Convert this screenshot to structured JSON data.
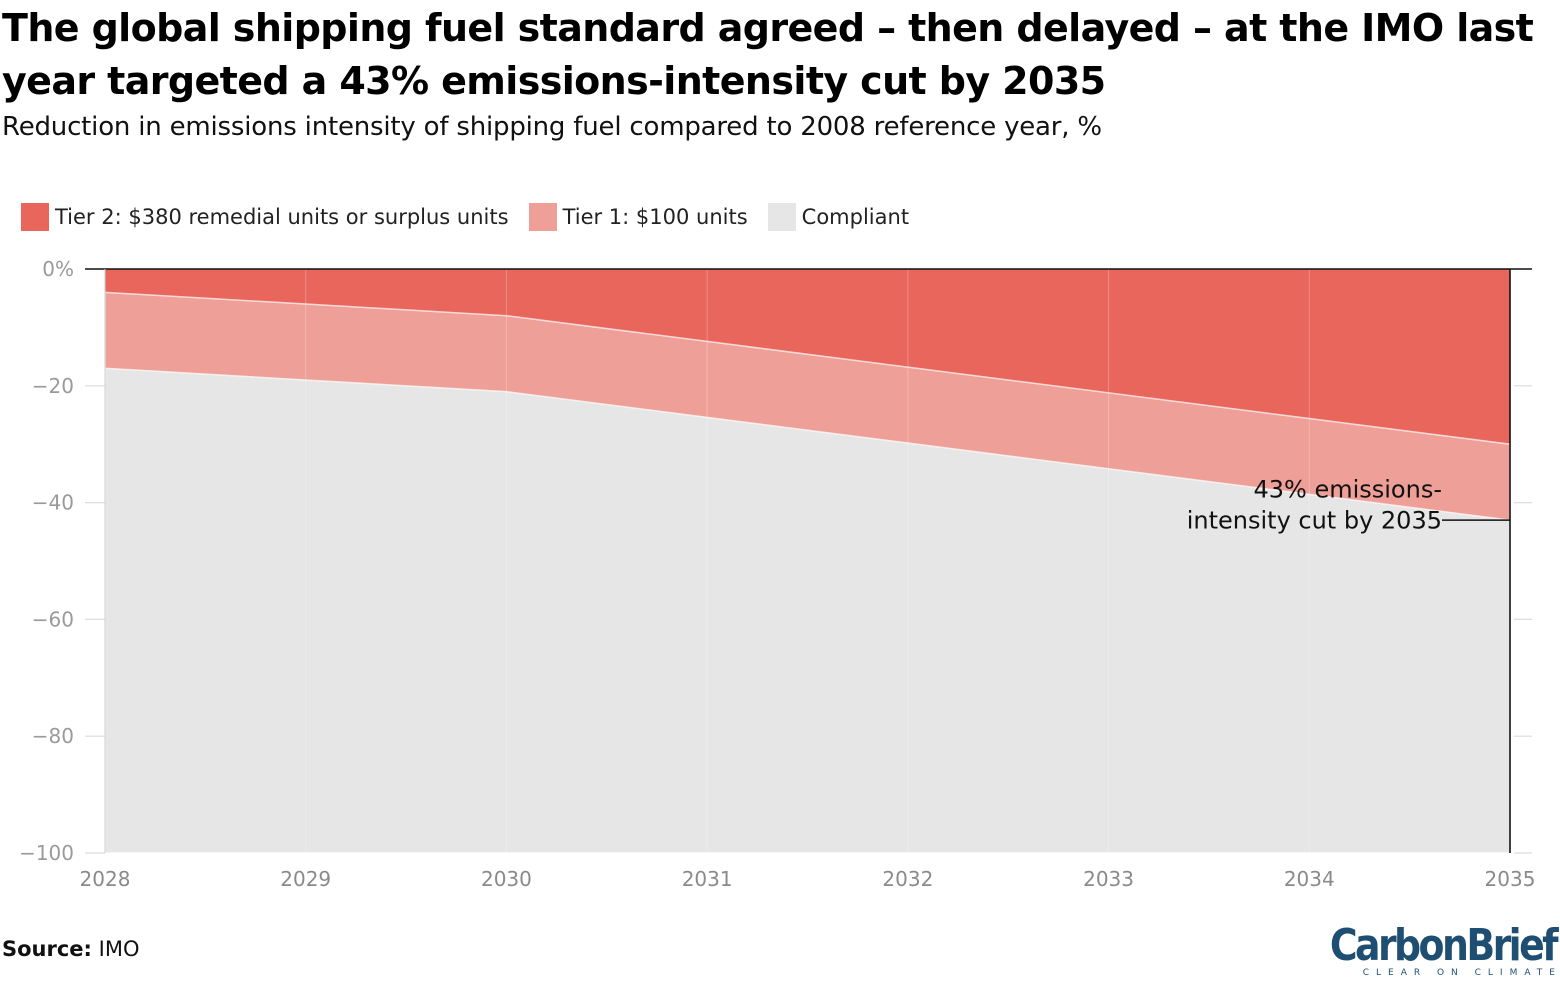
{
  "header": {
    "title": "The global shipping fuel standard agreed – then delayed – at the IMO last year targeted a 43% emissions-intensity cut by 2035",
    "subtitle": "Reduction in emissions intensity of shipping fuel compared to 2008 reference year, %"
  },
  "legend": [
    {
      "label": "Tier 2: $380 remedial units or surplus units",
      "color": "#e8665c"
    },
    {
      "label": "Tier 1: $100 units",
      "color": "#ee9f97"
    },
    {
      "label": "Compliant",
      "color": "#e6e6e6"
    }
  ],
  "chart_data": {
    "type": "area",
    "title": "The global shipping fuel standard agreed – then delayed – at the IMO last year targeted a 43% emissions-intensity cut by 2035",
    "subtitle": "Reduction in emissions intensity of shipping fuel compared to 2008 reference year, %",
    "x": [
      2028,
      2029,
      2030,
      2031,
      2032,
      2033,
      2034,
      2035
    ],
    "x_tick_labels": [
      "2028",
      "2029",
      "2030",
      "2031",
      "2032",
      "2033",
      "2034",
      "2035"
    ],
    "ylim": [
      -100,
      0
    ],
    "y_ticks": [
      0,
      -20,
      -40,
      -60,
      -80,
      -100
    ],
    "y_tick_labels": [
      "0%",
      "−20",
      "−40",
      "−60",
      "−80",
      "−100"
    ],
    "grid": true,
    "legend_position": "top-left",
    "series": [
      {
        "name": "Tier 2: $380 remedial units or surplus units",
        "color": "#e8665c",
        "values": [
          0,
          0,
          0,
          0,
          0,
          0,
          0,
          0
        ]
      },
      {
        "name": "Tier 1: $100 units",
        "color": "#ee9f97",
        "values": [
          -4,
          -6,
          -8,
          -12.4,
          -16.8,
          -21.2,
          -25.6,
          -30
        ]
      },
      {
        "name": "Compliant",
        "color": "#e6e6e6",
        "values": [
          -17,
          -19,
          -21,
          -25.4,
          -29.8,
          -34.2,
          -38.6,
          -43
        ]
      }
    ],
    "annotations": [
      {
        "text_lines": [
          "43% emissions-",
          "intensity cut by 2035"
        ],
        "x": 2035,
        "y": -43
      }
    ]
  },
  "footer": {
    "source_label": "Source:",
    "source_value": "IMO"
  },
  "logo": {
    "word": "CarbonBrief",
    "tagline": "CLEAR ON CLIMATE"
  }
}
